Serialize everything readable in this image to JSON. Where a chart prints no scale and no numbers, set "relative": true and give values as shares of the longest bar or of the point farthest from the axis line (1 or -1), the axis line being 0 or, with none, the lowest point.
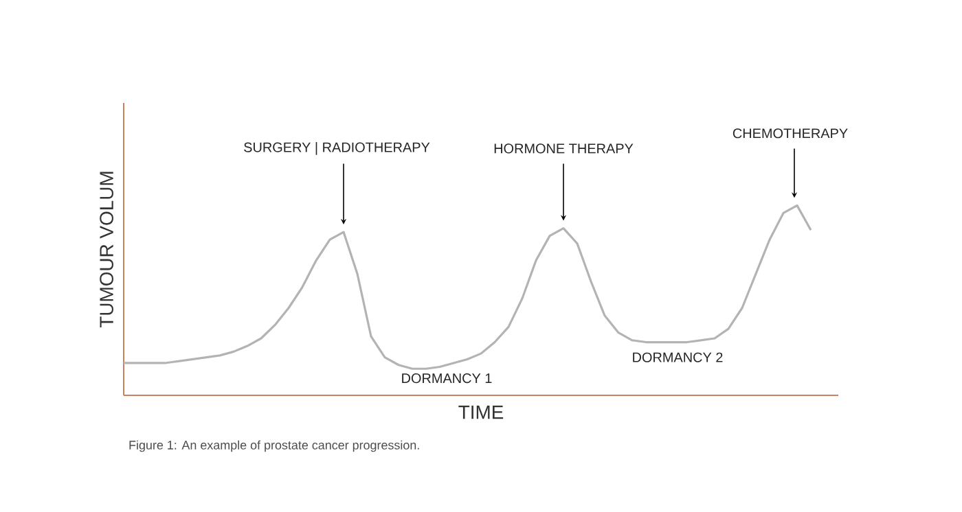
{
  "chart_data": {
    "type": "line",
    "relative": true,
    "xlabel": "TIME",
    "ylabel": "TUMOUR VOLUM",
    "categories": [
      null,
      null,
      null,
      null,
      null,
      null,
      null,
      null,
      null,
      null,
      null,
      null,
      null,
      null,
      null,
      null,
      null,
      null,
      null,
      null,
      null,
      null,
      null,
      null,
      null,
      null,
      null,
      null,
      null,
      null,
      null,
      null,
      null,
      null,
      null,
      null,
      null,
      null,
      null,
      null,
      null,
      null,
      null,
      null,
      null,
      null,
      null,
      null,
      null,
      null,
      null
    ],
    "series": [
      {
        "color": "#b3b3b3",
        "values": [
          0.17,
          0.17,
          0.17,
          0.17,
          0.18,
          0.19,
          0.2,
          0.21,
          0.23,
          0.26,
          0.3,
          0.37,
          0.46,
          0.57,
          0.71,
          0.82,
          0.86,
          0.64,
          0.31,
          0.2,
          0.16,
          0.14,
          0.14,
          0.15,
          0.17,
          0.19,
          0.22,
          0.28,
          0.36,
          0.51,
          0.71,
          0.84,
          0.88,
          0.8,
          0.6,
          0.42,
          0.33,
          0.29,
          0.28,
          0.28,
          0.28,
          0.28,
          0.29,
          0.3,
          0.35,
          0.46,
          0.64,
          0.82,
          0.96,
          1,
          0.87
        ]
      }
    ],
    "annotations": [
      "SURGERY | RADIOTHERAPY",
      "HORMONE THERAPY",
      "CHEMOTHERAPY",
      "DORMANCY 1",
      "DORMANCY 2",
      "Figure 1: An example of prostate cancer progression."
    ]
  }
}
